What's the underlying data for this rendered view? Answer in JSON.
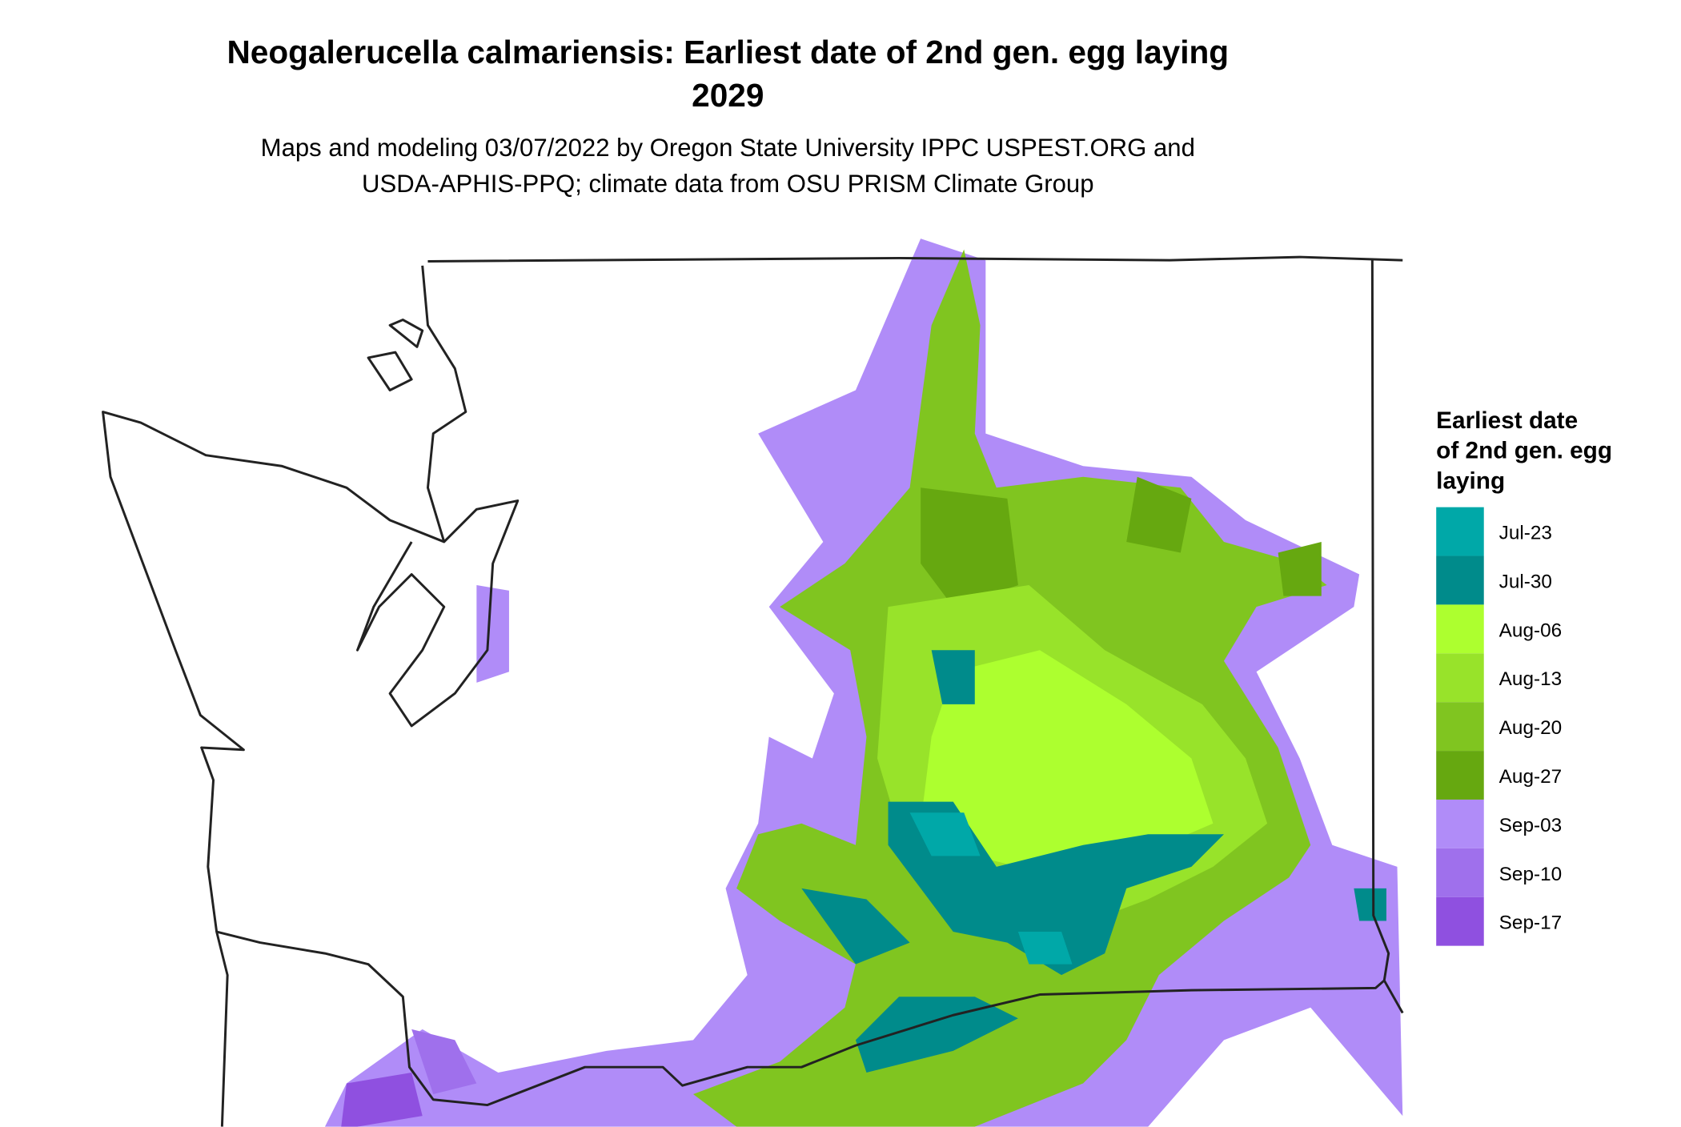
{
  "header": {
    "title": "Neogalerucella calmariensis: Earliest date of 2nd gen. egg laying",
    "year": "2029",
    "subtitle": [
      "Maps and modeling 03/07/2022 by Oregon State University IPPC USPEST.ORG and",
      "USDA-APHIS-PPQ; climate data from OSU PRISM Climate Group"
    ]
  },
  "legend": {
    "title": [
      "Earliest date",
      "of 2nd gen. egg",
      "laying"
    ],
    "items": [
      {
        "label": "Jul-23",
        "color": "#00a8a8"
      },
      {
        "label": "Jul-30",
        "color": "#008b8b"
      },
      {
        "label": "Aug-06",
        "color": "#adff2f"
      },
      {
        "label": "Aug-13",
        "color": "#98e32a"
      },
      {
        "label": "Aug-20",
        "color": "#80c520"
      },
      {
        "label": "Aug-27",
        "color": "#66a810"
      },
      {
        "label": "Sep-03",
        "color": "#b08cf8"
      },
      {
        "label": "Sep-10",
        "color": "#9f70ec"
      },
      {
        "label": "Sep-17",
        "color": "#8f50e0"
      }
    ]
  }
}
